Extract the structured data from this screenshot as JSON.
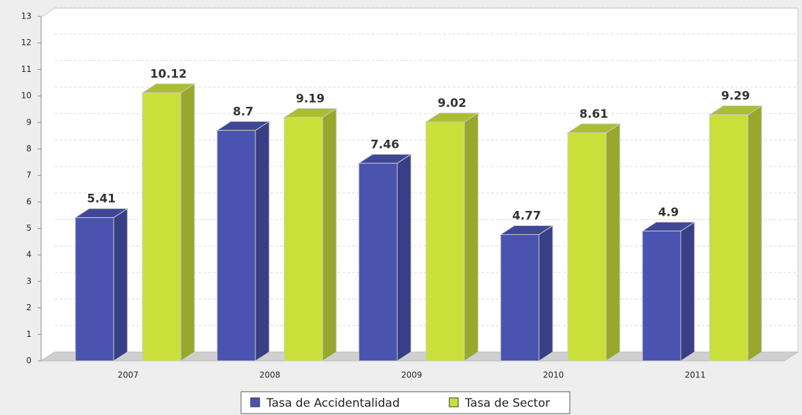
{
  "chart_data": {
    "type": "bar",
    "categories": [
      "2007",
      "2008",
      "2009",
      "2010",
      "2011"
    ],
    "series": [
      {
        "name": "Tasa de Accidentalidad",
        "color": "#4a54b0",
        "values": [
          5.41,
          8.7,
          7.46,
          4.77,
          4.9
        ]
      },
      {
        "name": "Tasa de Sector",
        "color": "#c9e03a",
        "values": [
          10.12,
          9.19,
          9.02,
          8.61,
          9.29
        ]
      }
    ],
    "ylim": [
      0,
      13
    ],
    "yticks": [
      0,
      1,
      2,
      3,
      4,
      5,
      6,
      7,
      8,
      9,
      10,
      11,
      12,
      13
    ],
    "grid": true
  }
}
